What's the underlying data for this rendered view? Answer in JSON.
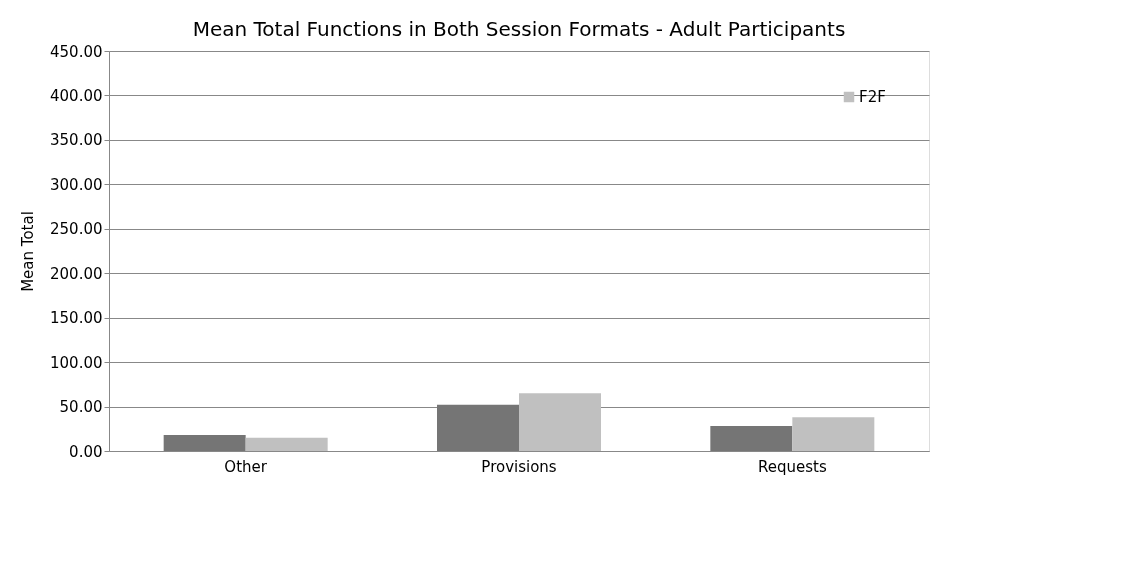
{
  "chart_data": {
    "type": "bar",
    "title": "Mean Total Functions in Both Session Formats - Adult Participants",
    "ylabel": "Mean Total",
    "categories": [
      "Other",
      "Provisions",
      "Requests"
    ],
    "series": [
      {
        "color": "#757575",
        "values": [
          18,
          52,
          28
        ]
      },
      {
        "name": "F2F",
        "color": "#c0c0c0",
        "values": [
          15,
          65,
          38
        ]
      }
    ],
    "ylim": [
      0,
      450
    ],
    "yticks": [
      {
        "value": 0,
        "label": "0.00"
      },
      {
        "value": 50,
        "label": "50.00"
      },
      {
        "value": 100,
        "label": "100.00"
      },
      {
        "value": 150,
        "label": "150.00"
      },
      {
        "value": 200,
        "label": "200.00"
      },
      {
        "value": 250,
        "label": "250.00"
      },
      {
        "value": 300,
        "label": "300.00"
      },
      {
        "value": 350,
        "label": "350.00"
      },
      {
        "value": 400,
        "label": "400.00"
      },
      {
        "value": 450,
        "label": "450.00"
      }
    ],
    "grid": "y",
    "legend": "top right"
  }
}
